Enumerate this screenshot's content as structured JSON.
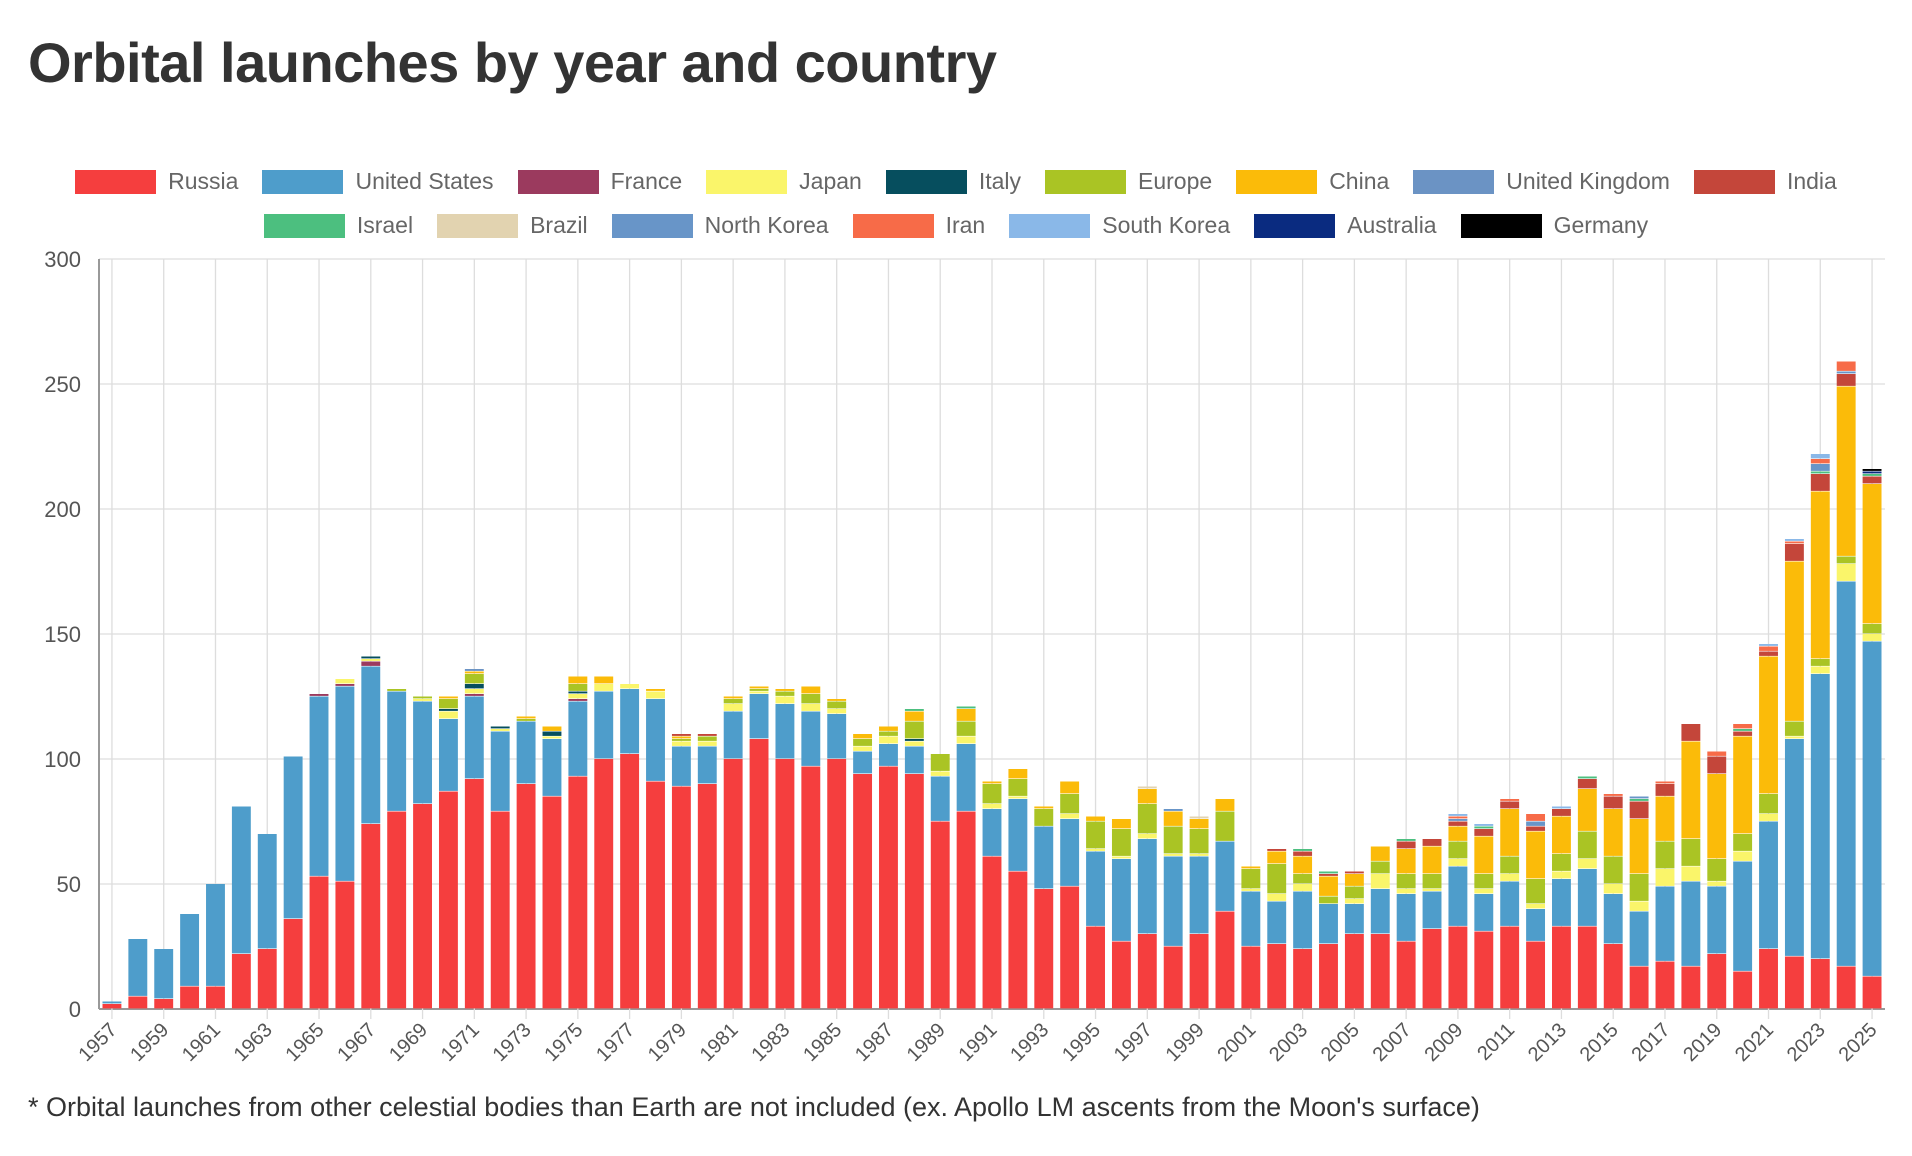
{
  "chart_data": {
    "type": "bar",
    "stacked": true,
    "title": "Orbital launches by year and country",
    "footnote": "* Orbital launches from other celestial bodies than Earth are not included (ex. Apollo LM ascents from the Moon's surface)",
    "xlabel": "",
    "ylabel": "",
    "ylim": [
      0,
      300
    ],
    "yticks": [
      "0",
      "50",
      "100",
      "150",
      "200",
      "250",
      "300"
    ],
    "year_range": [
      1957,
      2025
    ],
    "xtick_step": 2,
    "grid": true,
    "legend_position": "top",
    "series": [
      {
        "name": "Russia",
        "color": "#f53e3e",
        "values": {
          "1957": 2,
          "1958": 5,
          "1959": 4,
          "1960": 9,
          "1961": 9,
          "1962": 22,
          "1963": 24,
          "1964": 36,
          "1965": 53,
          "1966": 51,
          "1967": 74,
          "1968": 79,
          "1969": 82,
          "1970": 87,
          "1971": 92,
          "1972": 79,
          "1973": 90,
          "1974": 85,
          "1975": 93,
          "1976": 100,
          "1977": 102,
          "1978": 91,
          "1979": 89,
          "1980": 90,
          "1981": 100,
          "1982": 108,
          "1983": 100,
          "1984": 97,
          "1985": 100,
          "1986": 94,
          "1987": 97,
          "1988": 94,
          "1989": 75,
          "1990": 79,
          "1991": 61,
          "1992": 55,
          "1993": 48,
          "1994": 49,
          "1995": 33,
          "1996": 27,
          "1997": 30,
          "1998": 25,
          "1999": 30,
          "2000": 39,
          "2001": 25,
          "2002": 26,
          "2003": 24,
          "2004": 26,
          "2005": 30,
          "2006": 30,
          "2007": 27,
          "2008": 32,
          "2009": 33,
          "2010": 31,
          "2011": 33,
          "2012": 27,
          "2013": 33,
          "2014": 33,
          "2015": 26,
          "2016": 17,
          "2017": 19,
          "2018": 17,
          "2019": 22,
          "2020": 15,
          "2021": 24,
          "2022": 21,
          "2023": 20,
          "2024": 17,
          "2025": 13
        }
      },
      {
        "name": "United States",
        "color": "#4e9dcb",
        "values": {
          "1957": 1,
          "1958": 23,
          "1959": 20,
          "1960": 29,
          "1961": 41,
          "1962": 59,
          "1963": 46,
          "1964": 65,
          "1965": 72,
          "1966": 78,
          "1967": 63,
          "1968": 48,
          "1969": 41,
          "1970": 29,
          "1971": 33,
          "1972": 32,
          "1973": 25,
          "1974": 23,
          "1975": 30,
          "1976": 27,
          "1977": 26,
          "1978": 33,
          "1979": 16,
          "1980": 15,
          "1981": 19,
          "1982": 18,
          "1983": 22,
          "1984": 22,
          "1985": 18,
          "1986": 9,
          "1987": 9,
          "1988": 11,
          "1989": 18,
          "1990": 27,
          "1991": 19,
          "1992": 29,
          "1993": 25,
          "1994": 27,
          "1995": 30,
          "1996": 33,
          "1997": 38,
          "1998": 36,
          "1999": 31,
          "2000": 28,
          "2001": 22,
          "2002": 17,
          "2003": 23,
          "2004": 16,
          "2005": 12,
          "2006": 18,
          "2007": 19,
          "2008": 15,
          "2009": 24,
          "2010": 15,
          "2011": 18,
          "2012": 13,
          "2013": 19,
          "2014": 23,
          "2015": 20,
          "2016": 22,
          "2017": 30,
          "2018": 34,
          "2019": 27,
          "2020": 44,
          "2021": 51,
          "2022": 87,
          "2023": 114,
          "2024": 154,
          "2025": 134
        }
      },
      {
        "name": "France",
        "color": "#9b3a5e",
        "values": {
          "1965": 1,
          "1966": 1,
          "1967": 2,
          "1971": 1,
          "1975": 1
        }
      },
      {
        "name": "Japan",
        "color": "#faf56a",
        "values": {
          "1966": 2,
          "1967": 1,
          "1969": 1,
          "1970": 3,
          "1971": 2,
          "1972": 1,
          "1974": 1,
          "1975": 2,
          "1976": 3,
          "1977": 2,
          "1978": 3,
          "1979": 2,
          "1980": 2,
          "1981": 3,
          "1982": 1,
          "1983": 3,
          "1984": 3,
          "1985": 2,
          "1986": 2,
          "1987": 3,
          "1988": 2,
          "1989": 2,
          "1990": 3,
          "1991": 2,
          "1992": 1,
          "1994": 2,
          "1995": 1,
          "1996": 1,
          "1997": 2,
          "1998": 1,
          "1999": 1,
          "2001": 1,
          "2002": 3,
          "2003": 3,
          "2005": 2,
          "2006": 6,
          "2007": 2,
          "2008": 1,
          "2009": 3,
          "2010": 2,
          "2011": 3,
          "2012": 2,
          "2013": 3,
          "2014": 4,
          "2015": 4,
          "2016": 4,
          "2017": 7,
          "2018": 6,
          "2019": 2,
          "2020": 4,
          "2021": 3,
          "2022": 1,
          "2023": 3,
          "2024": 7,
          "2025": 3
        }
      },
      {
        "name": "Italy",
        "color": "#064e5e",
        "values": {
          "1967": 1,
          "1970": 1,
          "1971": 2,
          "1972": 1,
          "1974": 2,
          "1975": 1,
          "1988": 1
        }
      },
      {
        "name": "Europe",
        "color": "#aac424",
        "values": {
          "1968": 1,
          "1969": 1,
          "1970": 4,
          "1971": 4,
          "1973": 1,
          "1975": 3,
          "1979": 1,
          "1980": 2,
          "1981": 2,
          "1982": 1,
          "1983": 2,
          "1984": 4,
          "1985": 3,
          "1986": 3,
          "1987": 2,
          "1988": 7,
          "1989": 7,
          "1990": 6,
          "1991": 8,
          "1992": 7,
          "1993": 7,
          "1994": 8,
          "1995": 11,
          "1996": 11,
          "1997": 12,
          "1998": 11,
          "1999": 10,
          "2000": 12,
          "2001": 8,
          "2002": 12,
          "2003": 4,
          "2004": 3,
          "2005": 5,
          "2006": 5,
          "2007": 6,
          "2008": 6,
          "2009": 7,
          "2010": 6,
          "2011": 7,
          "2012": 10,
          "2013": 7,
          "2014": 11,
          "2015": 11,
          "2016": 11,
          "2017": 11,
          "2018": 11,
          "2019": 9,
          "2020": 7,
          "2021": 8,
          "2022": 6,
          "2023": 3,
          "2024": 3,
          "2025": 4
        }
      },
      {
        "name": "China",
        "color": "#fbbb09",
        "values": {
          "1970": 1,
          "1971": 1,
          "1973": 1,
          "1974": 2,
          "1975": 3,
          "1976": 3,
          "1978": 1,
          "1979": 1,
          "1981": 1,
          "1982": 1,
          "1983": 1,
          "1984": 3,
          "1985": 1,
          "1986": 2,
          "1987": 2,
          "1988": 4,
          "1990": 5,
          "1991": 1,
          "1992": 4,
          "1993": 1,
          "1994": 5,
          "1995": 2,
          "1996": 4,
          "1997": 6,
          "1998": 6,
          "1999": 4,
          "2000": 5,
          "2001": 1,
          "2002": 5,
          "2003": 7,
          "2004": 8,
          "2005": 5,
          "2006": 6,
          "2007": 10,
          "2008": 11,
          "2009": 6,
          "2010": 15,
          "2011": 19,
          "2012": 19,
          "2013": 15,
          "2014": 17,
          "2015": 19,
          "2016": 22,
          "2017": 18,
          "2018": 39,
          "2019": 34,
          "2020": 39,
          "2021": 55,
          "2022": 64,
          "2023": 67,
          "2024": 68,
          "2025": 56
        }
      },
      {
        "name": "United Kingdom",
        "color": "#6b93c4",
        "values": {
          "1971": 1
        }
      },
      {
        "name": "India",
        "color": "#c4463a",
        "values": {
          "1979": 1,
          "1980": 1,
          "2002": 1,
          "2003": 2,
          "2004": 1,
          "2005": 1,
          "2007": 3,
          "2008": 3,
          "2009": 2,
          "2010": 3,
          "2011": 3,
          "2012": 2,
          "2013": 3,
          "2014": 4,
          "2015": 5,
          "2016": 7,
          "2017": 5,
          "2018": 7,
          "2019": 7,
          "2020": 2,
          "2021": 2,
          "2022": 7,
          "2023": 7,
          "2024": 5,
          "2025": 3
        }
      },
      {
        "name": "Israel",
        "color": "#4cbf7f",
        "values": {
          "1988": 1,
          "1990": 1,
          "2003": 1,
          "2004": 1,
          "2007": 1,
          "2010": 1,
          "2014": 1,
          "2016": 1,
          "2020": 1,
          "2023": 1,
          "2025": 1
        }
      },
      {
        "name": "Brazil",
        "color": "#e2d3b0",
        "values": {
          "1997": 1,
          "1999": 1
        }
      },
      {
        "name": "North Korea",
        "color": "#6895c8",
        "values": {
          "1998": 1,
          "2009": 1,
          "2012": 2,
          "2016": 1,
          "2023": 3,
          "2024": 1
        }
      },
      {
        "name": "Iran",
        "color": "#f76b48",
        "values": {
          "2009": 1,
          "2011": 1,
          "2012": 3,
          "2015": 1,
          "2017": 1,
          "2019": 2,
          "2020": 2,
          "2021": 2,
          "2022": 1,
          "2023": 2,
          "2024": 4
        }
      },
      {
        "name": "South Korea",
        "color": "#8ab8e8",
        "values": {
          "2009": 1,
          "2010": 1,
          "2013": 1,
          "2021": 1,
          "2022": 1,
          "2023": 2
        }
      },
      {
        "name": "Australia",
        "color": "#0a2b80",
        "values": {
          "2025": 1
        }
      },
      {
        "name": "Germany",
        "color": "#000000",
        "values": {
          "2025": 1
        }
      }
    ]
  }
}
